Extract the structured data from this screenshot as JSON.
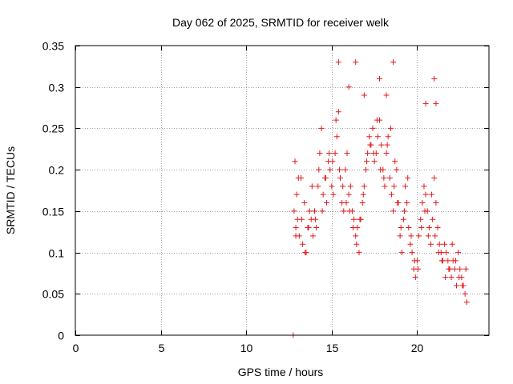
{
  "chart_data": {
    "type": "scatter",
    "title": "Day 062 of 2025, SRMTID for receiver welk",
    "xlabel": "GPS time / hours",
    "ylabel": "SRMTID / TECUs",
    "xlim": [
      0,
      24.2
    ],
    "ylim": [
      0,
      0.35
    ],
    "x_ticks": [
      0,
      5,
      10,
      15,
      20
    ],
    "x_tick_labels": [
      "0",
      "5",
      "10",
      "15",
      "20"
    ],
    "y_ticks": [
      0,
      0.05,
      0.1,
      0.15,
      0.2,
      0.25,
      0.3,
      0.35
    ],
    "y_tick_labels": [
      "0",
      "0.05",
      "0.1",
      "0.15",
      "0.2",
      "0.25",
      "0.3",
      "0.35"
    ],
    "grid": true,
    "marker": "plus",
    "series": [
      {
        "name": "SRMTID",
        "color": "#e41a1c",
        "x": [
          12.75,
          12.8,
          12.85,
          12.9,
          12.95,
          13.0,
          13.1,
          13.2,
          13.3,
          13.4,
          13.5,
          13.6,
          13.7,
          13.8,
          13.9,
          14.0,
          14.1,
          14.2,
          14.3,
          14.4,
          14.5,
          14.6,
          14.7,
          14.8,
          14.9,
          15.0,
          15.1,
          15.2,
          15.3,
          15.4,
          15.5,
          15.6,
          15.7,
          15.8,
          15.9,
          16.0,
          16.1,
          16.2,
          16.3,
          16.4,
          16.5,
          16.6,
          16.7,
          16.8,
          16.9,
          17.0,
          17.1,
          17.2,
          17.3,
          17.4,
          17.5,
          17.6,
          17.7,
          17.8,
          17.9,
          18.0,
          18.1,
          18.2,
          18.3,
          18.4,
          18.5,
          18.6,
          18.7,
          18.8,
          18.9,
          19.0,
          19.1,
          19.2,
          19.3,
          19.4,
          19.5,
          19.6,
          19.7,
          19.8,
          19.9,
          20.0,
          20.1,
          20.2,
          20.3,
          20.4,
          20.5,
          20.6,
          20.7,
          20.8,
          20.9,
          21.0,
          21.1,
          21.2,
          21.3,
          21.4,
          21.5,
          21.6,
          21.7,
          21.8,
          21.9,
          22.0,
          22.1,
          22.2,
          22.3,
          22.4,
          22.5,
          22.6,
          22.7,
          22.8,
          22.9,
          12.9,
          13.05,
          13.25,
          13.45,
          13.65,
          13.85,
          14.05,
          14.25,
          14.45,
          14.65,
          14.85,
          15.05,
          15.25,
          15.45,
          15.65,
          15.85,
          16.05,
          16.25,
          16.45,
          16.65,
          16.85,
          17.05,
          17.25,
          17.45,
          17.65,
          17.85,
          18.05,
          18.25,
          18.45,
          18.65,
          18.85,
          19.05,
          19.25,
          19.45,
          19.65,
          19.85,
          20.05,
          20.25,
          20.45,
          20.65,
          20.85,
          21.05,
          21.25,
          21.45,
          21.65,
          21.85,
          22.05,
          22.25,
          22.45,
          22.65,
          22.85,
          15.4,
          16.4,
          18.6,
          17.8,
          21.0,
          21.1,
          20.5,
          16.0,
          16.9,
          18.2
        ],
        "y": [
          0.0,
          0.15,
          0.21,
          0.13,
          0.17,
          0.14,
          0.12,
          0.19,
          0.11,
          0.16,
          0.1,
          0.13,
          0.15,
          0.14,
          0.12,
          0.15,
          0.13,
          0.18,
          0.22,
          0.25,
          0.17,
          0.19,
          0.16,
          0.21,
          0.2,
          0.18,
          0.17,
          0.22,
          0.24,
          0.27,
          0.19,
          0.16,
          0.15,
          0.2,
          0.22,
          0.17,
          0.18,
          0.15,
          0.14,
          0.12,
          0.13,
          0.1,
          0.14,
          0.16,
          0.18,
          0.2,
          0.22,
          0.24,
          0.23,
          0.25,
          0.21,
          0.22,
          0.24,
          0.26,
          0.23,
          0.2,
          0.18,
          0.22,
          0.24,
          0.19,
          0.17,
          0.15,
          0.21,
          0.2,
          0.16,
          0.12,
          0.1,
          0.14,
          0.18,
          0.16,
          0.13,
          0.11,
          0.1,
          0.08,
          0.07,
          0.09,
          0.12,
          0.14,
          0.16,
          0.18,
          0.17,
          0.15,
          0.13,
          0.11,
          0.14,
          0.19,
          0.16,
          0.13,
          0.11,
          0.1,
          0.09,
          0.11,
          0.1,
          0.09,
          0.08,
          0.07,
          0.09,
          0.08,
          0.06,
          0.1,
          0.08,
          0.07,
          0.06,
          0.05,
          0.04,
          0.12,
          0.19,
          0.14,
          0.1,
          0.13,
          0.18,
          0.14,
          0.2,
          0.15,
          0.19,
          0.22,
          0.21,
          0.26,
          0.2,
          0.18,
          0.16,
          0.15,
          0.13,
          0.11,
          0.14,
          0.17,
          0.21,
          0.23,
          0.22,
          0.26,
          0.2,
          0.19,
          0.23,
          0.25,
          0.18,
          0.16,
          0.13,
          0.15,
          0.19,
          0.12,
          0.09,
          0.08,
          0.13,
          0.15,
          0.12,
          0.17,
          0.12,
          0.1,
          0.09,
          0.07,
          0.08,
          0.11,
          0.09,
          0.07,
          0.06,
          0.08,
          0.33,
          0.33,
          0.33,
          0.31,
          0.31,
          0.28,
          0.28,
          0.3,
          0.29,
          0.29
        ]
      }
    ]
  }
}
